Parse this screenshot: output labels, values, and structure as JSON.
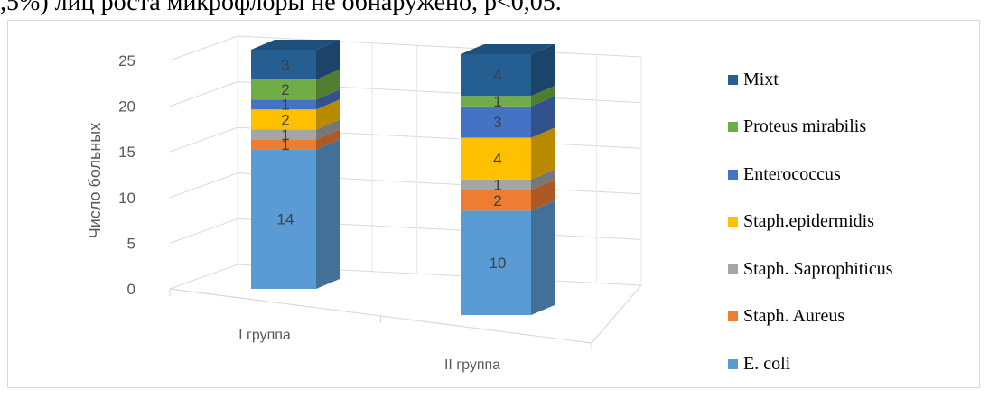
{
  "caption": ",5%) лиц роста микрофлоры не обнаружено, р<0,05.",
  "chart_data": {
    "type": "bar",
    "stacked": true,
    "three_d": true,
    "categories": [
      "I группа",
      "II группа"
    ],
    "ylabel": "Число больных",
    "ylim": [
      0,
      25
    ],
    "yticks": [
      0,
      5,
      10,
      15,
      20,
      25
    ],
    "grid": true,
    "legend_position": "right",
    "series": [
      {
        "name": "E. coli",
        "values": [
          14,
          10
        ],
        "color": "#5b9bd5"
      },
      {
        "name": "Staph. Aureus",
        "values": [
          1,
          2
        ],
        "color": "#ed7d31"
      },
      {
        "name": "Staph. Saprophiticus",
        "values": [
          1,
          1
        ],
        "color": "#a5a5a5"
      },
      {
        "name": "Staph.epidermidis",
        "values": [
          2,
          4
        ],
        "color": "#ffc000"
      },
      {
        "name": "Enterococcus",
        "values": [
          1,
          3
        ],
        "color": "#4472c4"
      },
      {
        "name": "Proteus mirabilis",
        "values": [
          2,
          1
        ],
        "color": "#70ad47"
      },
      {
        "name": "Mixt",
        "values": [
          3,
          4
        ],
        "color": "#255e91"
      }
    ]
  }
}
